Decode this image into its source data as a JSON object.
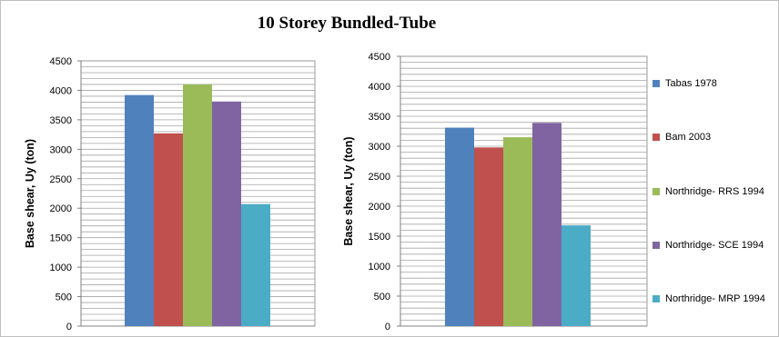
{
  "title": "10 Storey Bundled-Tube",
  "colors": {
    "Tabas 1978": "#4f81bd",
    "Bam 2003": "#c0504d",
    "Northridge- RRS 1994": "#9bbb59",
    "Northridge- SCE 1994": "#8064a2",
    "Northridge- MRP 1994": "#4bacc6"
  },
  "legend": {
    "items": [
      "Tabas 1978",
      "Bam 2003",
      "Northridge- RRS 1994",
      "Northridge- SCE 1994",
      "Northridge- MRP 1994"
    ],
    "position": "right"
  },
  "chart_data": [
    {
      "type": "bar",
      "title": "10 Storey Bundled-Tube",
      "ylabel": "Base shear, Uy (ton)",
      "xlabel": "",
      "ylim": [
        0,
        4500
      ],
      "yticks": [
        0,
        500,
        1000,
        1500,
        2000,
        2500,
        3000,
        3500,
        4000,
        4500
      ],
      "grid": "horizontal, every 100",
      "series": [
        {
          "name": "Tabas 1978",
          "values": [
            3920
          ]
        },
        {
          "name": "Bam 2003",
          "values": [
            3270
          ]
        },
        {
          "name": "Northridge- RRS 1994",
          "values": [
            4100
          ]
        },
        {
          "name": "Northridge- SCE 1994",
          "values": [
            3810
          ]
        },
        {
          "name": "Northridge- MRP 1994",
          "values": [
            2070
          ]
        }
      ]
    },
    {
      "type": "bar",
      "title": "",
      "ylabel": "Base shear, Uy (ton)",
      "xlabel": "",
      "ylim": [
        0,
        4500
      ],
      "yticks": [
        0,
        500,
        1000,
        1500,
        2000,
        2500,
        3000,
        3500,
        4000,
        4500
      ],
      "grid": "horizontal, every 100",
      "series": [
        {
          "name": "Tabas 1978",
          "values": [
            3310
          ]
        },
        {
          "name": "Bam 2003",
          "values": [
            2980
          ]
        },
        {
          "name": "Northridge- RRS 1994",
          "values": [
            3150
          ]
        },
        {
          "name": "Northridge- SCE 1994",
          "values": [
            3390
          ]
        },
        {
          "name": "Northridge- MRP 1994",
          "values": [
            1680
          ]
        }
      ]
    }
  ]
}
